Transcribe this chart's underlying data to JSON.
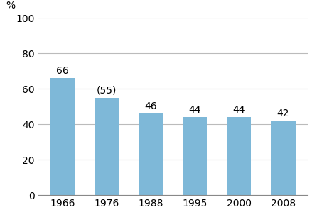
{
  "categories": [
    "1966",
    "1976",
    "1988",
    "1995",
    "2000",
    "2008"
  ],
  "values": [
    66,
    55,
    46,
    44,
    44,
    42
  ],
  "labels": [
    "66",
    "(55)",
    "46",
    "44",
    "44",
    "42"
  ],
  "bar_color": "#7eb8d8",
  "ylabel": "%",
  "ylim": [
    0,
    100
  ],
  "yticks": [
    0,
    20,
    40,
    60,
    80,
    100
  ],
  "background_color": "#ffffff",
  "bar_width": 0.55,
  "label_fontsize": 10,
  "tick_fontsize": 10,
  "ylabel_fontsize": 10
}
